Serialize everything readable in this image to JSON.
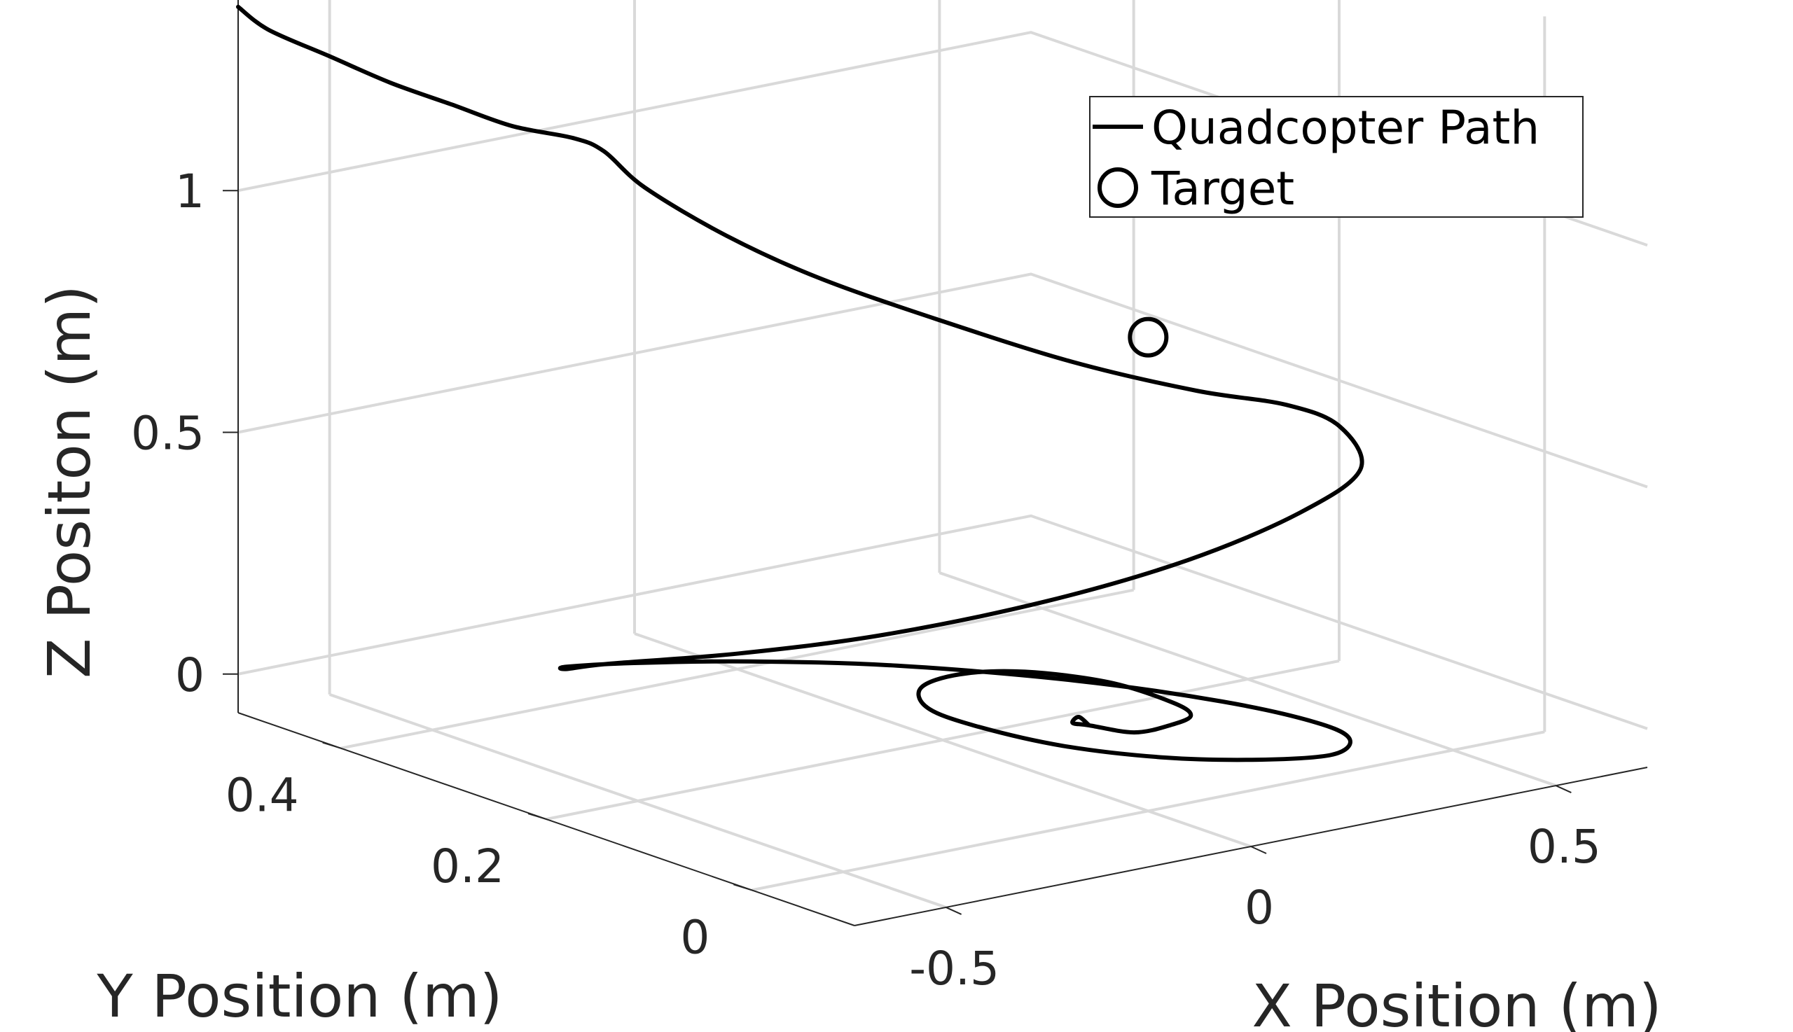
{
  "chart_data": {
    "type": "line",
    "dimensions": 3,
    "xlabel": "X Position (m)",
    "ylabel": "Y Position (m)",
    "zlabel": "Z Positon (m)",
    "xlim": [
      -0.65,
      0.65
    ],
    "ylim": [
      -0.1,
      0.5
    ],
    "zlim": [
      -0.08,
      1.4
    ],
    "xticks": [
      {
        "value": -0.5,
        "label": "-0.5"
      },
      {
        "value": 0,
        "label": "0"
      },
      {
        "value": 0.5,
        "label": "0.5"
      }
    ],
    "yticks": [
      {
        "value": 0,
        "label": "0"
      },
      {
        "value": 0.2,
        "label": "0.2"
      },
      {
        "value": 0.4,
        "label": "0.4"
      }
    ],
    "zticks": [
      {
        "value": 0,
        "label": "0"
      },
      {
        "value": 0.5,
        "label": "0.5"
      },
      {
        "value": 1,
        "label": "1"
      }
    ],
    "grid": true,
    "legend": {
      "placement": "top-right",
      "entries": [
        {
          "label": "Quadcopter Path",
          "marker": "line"
        },
        {
          "label": "Target",
          "marker": "circle"
        }
      ]
    },
    "series": [
      {
        "name": "Quadcopter Path",
        "color": "#000000",
        "style": "line",
        "points": [
          {
            "x": -0.65,
            "y": 0.5,
            "z": 1.38
          },
          {
            "x": -0.6,
            "y": 0.5,
            "z": 1.32
          },
          {
            "x": -0.5,
            "y": 0.5,
            "z": 1.24
          },
          {
            "x": -0.4,
            "y": 0.5,
            "z": 1.16
          },
          {
            "x": -0.3,
            "y": 0.5,
            "z": 1.09
          },
          {
            "x": -0.2,
            "y": 0.5,
            "z": 1.02
          },
          {
            "x": -0.1,
            "y": 0.5,
            "z": 0.97
          },
          {
            "x": -0.05,
            "y": 0.5,
            "z": 0.93
          },
          {
            "x": 0.0,
            "y": 0.49,
            "z": 0.85
          },
          {
            "x": 0.1,
            "y": 0.47,
            "z": 0.74
          },
          {
            "x": 0.2,
            "y": 0.44,
            "z": 0.65
          },
          {
            "x": 0.3,
            "y": 0.38,
            "z": 0.58
          },
          {
            "x": 0.4,
            "y": 0.31,
            "z": 0.52
          },
          {
            "x": 0.5,
            "y": 0.25,
            "z": 0.48
          },
          {
            "x": 0.58,
            "y": 0.21,
            "z": 0.46
          },
          {
            "x": 0.6,
            "y": 0.17,
            "z": 0.44
          },
          {
            "x": 0.55,
            "y": 0.12,
            "z": 0.4
          },
          {
            "x": 0.4,
            "y": 0.09,
            "z": 0.37
          },
          {
            "x": 0.2,
            "y": 0.08,
            "z": 0.33
          },
          {
            "x": 0.0,
            "y": 0.1,
            "z": 0.28
          },
          {
            "x": -0.18,
            "y": 0.15,
            "z": 0.22
          },
          {
            "x": -0.3,
            "y": 0.22,
            "z": 0.16
          },
          {
            "x": -0.38,
            "y": 0.3,
            "z": 0.1
          },
          {
            "x": -0.38,
            "y": 0.34,
            "z": 0.06
          },
          {
            "x": -0.33,
            "y": 0.37,
            "z": 0.03
          },
          {
            "x": -0.22,
            "y": 0.37,
            "z": 0.01
          },
          {
            "x": -0.08,
            "y": 0.34,
            "z": 0.0
          },
          {
            "x": 0.06,
            "y": 0.28,
            "z": 0.0
          },
          {
            "x": 0.2,
            "y": 0.19,
            "z": 0.0
          },
          {
            "x": 0.29,
            "y": 0.1,
            "z": 0.0
          },
          {
            "x": 0.31,
            "y": 0.02,
            "z": 0.01
          },
          {
            "x": 0.28,
            "y": -0.03,
            "z": 0.02
          },
          {
            "x": 0.2,
            "y": -0.06,
            "z": 0.03
          },
          {
            "x": 0.08,
            "y": -0.06,
            "z": 0.05
          },
          {
            "x": -0.04,
            "y": -0.04,
            "z": 0.07
          },
          {
            "x": -0.14,
            "y": 0.0,
            "z": 0.09
          },
          {
            "x": -0.2,
            "y": 0.05,
            "z": 0.11
          },
          {
            "x": -0.21,
            "y": 0.09,
            "z": 0.12
          },
          {
            "x": -0.17,
            "y": 0.12,
            "z": 0.13
          },
          {
            "x": -0.09,
            "y": 0.13,
            "z": 0.13
          },
          {
            "x": 0.0,
            "y": 0.12,
            "z": 0.12
          },
          {
            "x": 0.07,
            "y": 0.08,
            "z": 0.11
          },
          {
            "x": 0.09,
            "y": 0.03,
            "z": 0.1
          },
          {
            "x": 0.07,
            "y": 0.0,
            "z": 0.1
          },
          {
            "x": 0.02,
            "y": -0.01,
            "z": 0.1
          },
          {
            "x": -0.04,
            "y": -0.01,
            "z": 0.1
          },
          {
            "x": -0.08,
            "y": 0.01,
            "z": 0.11
          },
          {
            "x": -0.09,
            "y": 0.02,
            "z": 0.11
          },
          {
            "x": -0.08,
            "y": 0.02,
            "z": 0.12
          },
          {
            "x": -0.08,
            "y": 0.01,
            "z": 0.11
          }
        ]
      },
      {
        "name": "Target",
        "color": "#000000",
        "style": "marker-circle",
        "points": [
          {
            "x": 0.0,
            "y": 0.0,
            "z": 0.9
          }
        ]
      }
    ]
  }
}
